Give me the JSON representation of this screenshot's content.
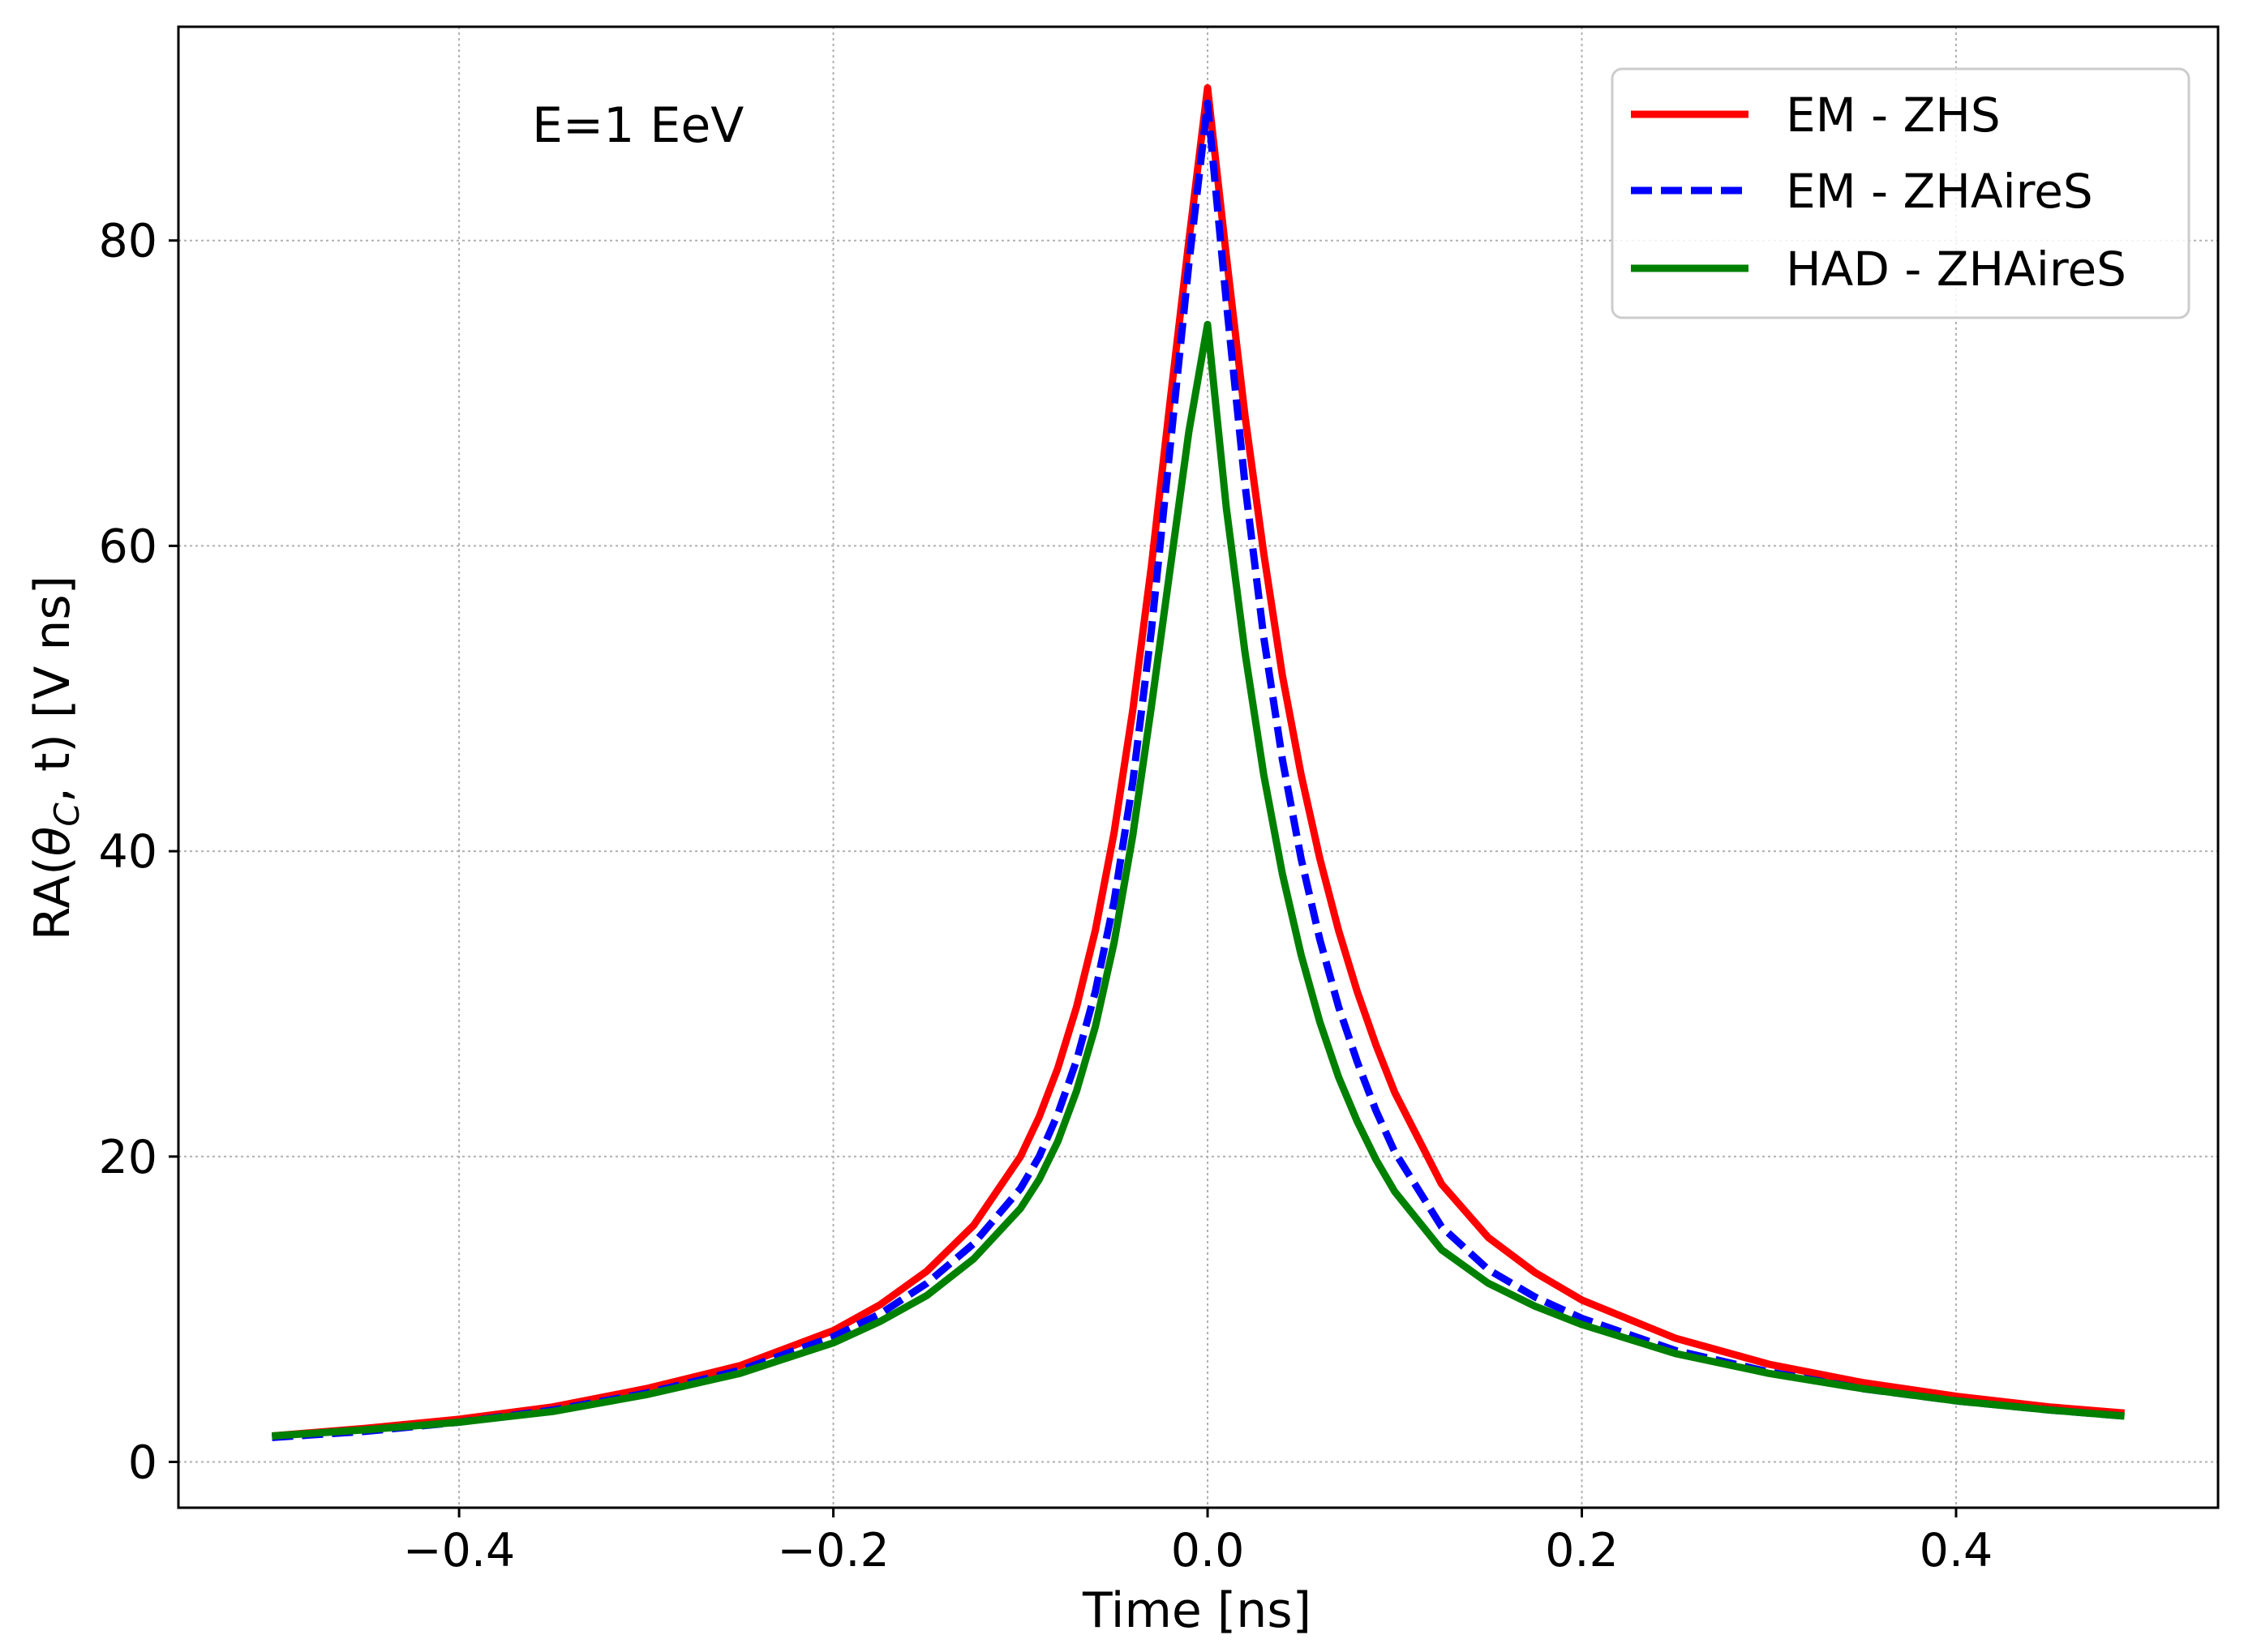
{
  "chart_data": {
    "type": "line",
    "title": "",
    "xlabel": "Time [ns]",
    "ylabel_prefix": "RA(",
    "ylabel_theta": "θ",
    "ylabel_sub": "C",
    "ylabel_suffix": ", t) [V ns]",
    "annotation": "E=1 EeV",
    "xlim": [
      -0.55,
      0.54
    ],
    "ylim": [
      -3,
      94
    ],
    "xticks": [
      -0.4,
      -0.2,
      0.0,
      0.2,
      0.4
    ],
    "xtick_labels": [
      "−0.4",
      "−0.2",
      "0.0",
      "0.2",
      "0.4"
    ],
    "yticks": [
      0,
      20,
      40,
      60,
      80
    ],
    "ytick_labels": [
      "0",
      "20",
      "40",
      "60",
      "80"
    ],
    "grid": true,
    "legend_position": "top-right",
    "x": [
      -0.5,
      -0.45,
      -0.4,
      -0.35,
      -0.3,
      -0.25,
      -0.2,
      -0.175,
      -0.15,
      -0.125,
      -0.1,
      -0.09,
      -0.08,
      -0.07,
      -0.06,
      -0.05,
      -0.04,
      -0.03,
      -0.02,
      -0.01,
      0.0,
      0.01,
      0.02,
      0.03,
      0.04,
      0.05,
      0.06,
      0.07,
      0.08,
      0.09,
      0.1,
      0.125,
      0.15,
      0.175,
      0.2,
      0.25,
      0.3,
      0.35,
      0.4,
      0.45,
      0.49
    ],
    "series": [
      {
        "name": "EM - ZHS",
        "color": "#ff0000",
        "style": "solid",
        "values": [
          1.7,
          2.2,
          2.8,
          3.6,
          4.8,
          6.3,
          8.6,
          10.3,
          12.5,
          15.5,
          20.0,
          22.6,
          25.8,
          29.8,
          34.8,
          41.2,
          49.2,
          58.7,
          69.5,
          80.0,
          90.0,
          79.0,
          68.5,
          59.5,
          51.5,
          45.0,
          39.5,
          34.8,
          30.8,
          27.3,
          24.2,
          18.2,
          14.7,
          12.4,
          10.6,
          8.1,
          6.4,
          5.2,
          4.3,
          3.6,
          3.2
        ]
      },
      {
        "name": "EM - ZHAireS",
        "color": "#0000ff",
        "style": "dashed",
        "values": [
          1.6,
          2.0,
          2.6,
          3.4,
          4.5,
          6.0,
          8.2,
          9.7,
          11.7,
          14.3,
          17.9,
          20.0,
          22.8,
          26.3,
          30.8,
          36.7,
          44.5,
          54.5,
          66.5,
          78.5,
          89.0,
          76.0,
          64.0,
          54.0,
          46.0,
          39.5,
          34.2,
          29.8,
          26.2,
          23.0,
          20.3,
          15.4,
          12.6,
          10.8,
          9.4,
          7.3,
          5.9,
          4.8,
          4.0,
          3.4,
          3.0
        ]
      },
      {
        "name": "HAD - ZHAireS",
        "color": "#008000",
        "style": "solid",
        "values": [
          1.7,
          2.1,
          2.6,
          3.3,
          4.4,
          5.8,
          7.8,
          9.2,
          10.9,
          13.3,
          16.6,
          18.5,
          21.0,
          24.3,
          28.5,
          34.0,
          41.0,
          49.5,
          58.5,
          67.5,
          74.5,
          62.5,
          53.0,
          45.0,
          38.5,
          33.2,
          28.8,
          25.2,
          22.3,
          19.8,
          17.7,
          13.9,
          11.7,
          10.2,
          9.0,
          7.1,
          5.8,
          4.8,
          4.0,
          3.4,
          3.0
        ]
      }
    ]
  }
}
